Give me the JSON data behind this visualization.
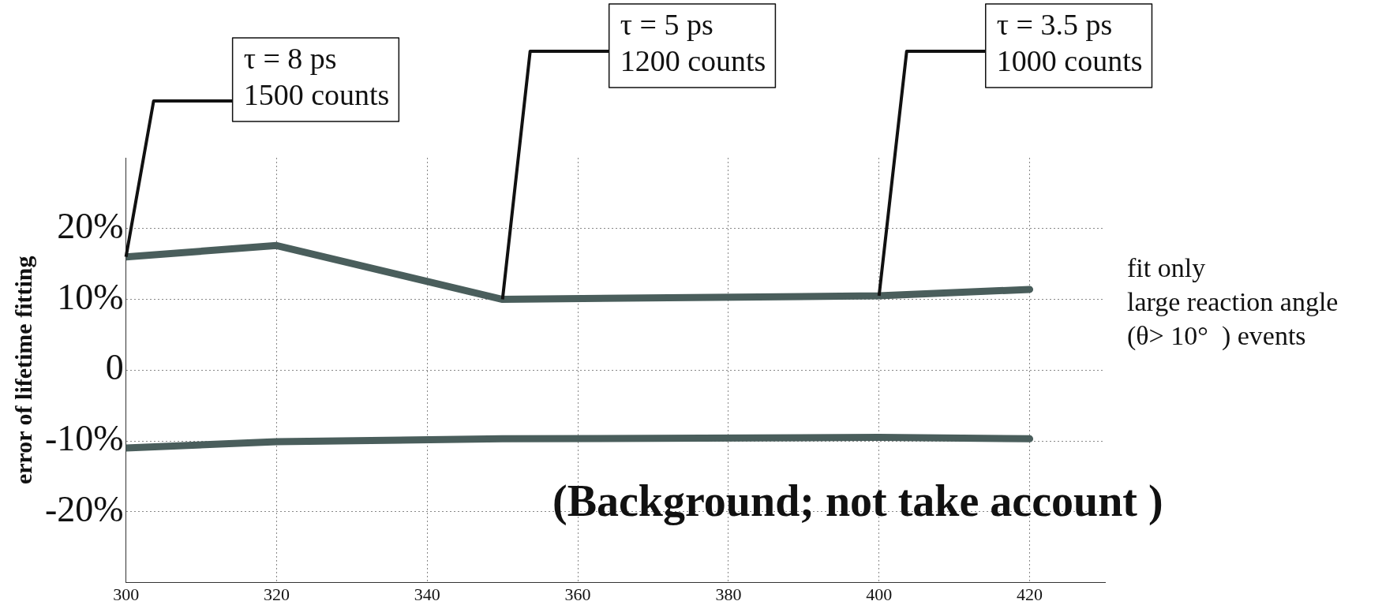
{
  "chart_data": {
    "type": "line",
    "ylabel": "error of lifetime fitting",
    "series": [
      {
        "color": "#4a5e5c",
        "x": [
          300,
          320,
          350,
          400,
          420
        ],
        "values": [
          16,
          17.6,
          10,
          10.5,
          11.4
        ]
      },
      {
        "color": "#4a5e5c",
        "x": [
          300,
          320,
          350,
          400,
          420
        ],
        "values": [
          -11,
          -10.1,
          -9.7,
          -9.5,
          -9.7
        ]
      }
    ],
    "xlim": [
      300,
      430
    ],
    "xticks": [
      300,
      320,
      340,
      360,
      380,
      400,
      420
    ],
    "ylim": [
      -30,
      30
    ],
    "yticks": [
      {
        "value": -20,
        "label": "-20%"
      },
      {
        "value": -10,
        "label": "-10%"
      },
      0,
      {
        "value": 10,
        "label": "10%"
      },
      {
        "value": 20,
        "label": "20%"
      }
    ],
    "grid": true,
    "legend": false,
    "marker": "none",
    "line_style": "solid",
    "annotations": [
      {
        "text": "τ = 8 ps\n1500 counts",
        "x": 300,
        "y": 16
      },
      {
        "text": "τ = 5 ps\n1200 counts",
        "x": 350,
        "y": 10
      },
      {
        "text": "τ = 3.5 ps\n1000 counts",
        "x": 400,
        "y": 10.5
      },
      "fit only\nlarge reaction angle\n(θ> 10°  ) events",
      "(Background; not take account )"
    ]
  }
}
